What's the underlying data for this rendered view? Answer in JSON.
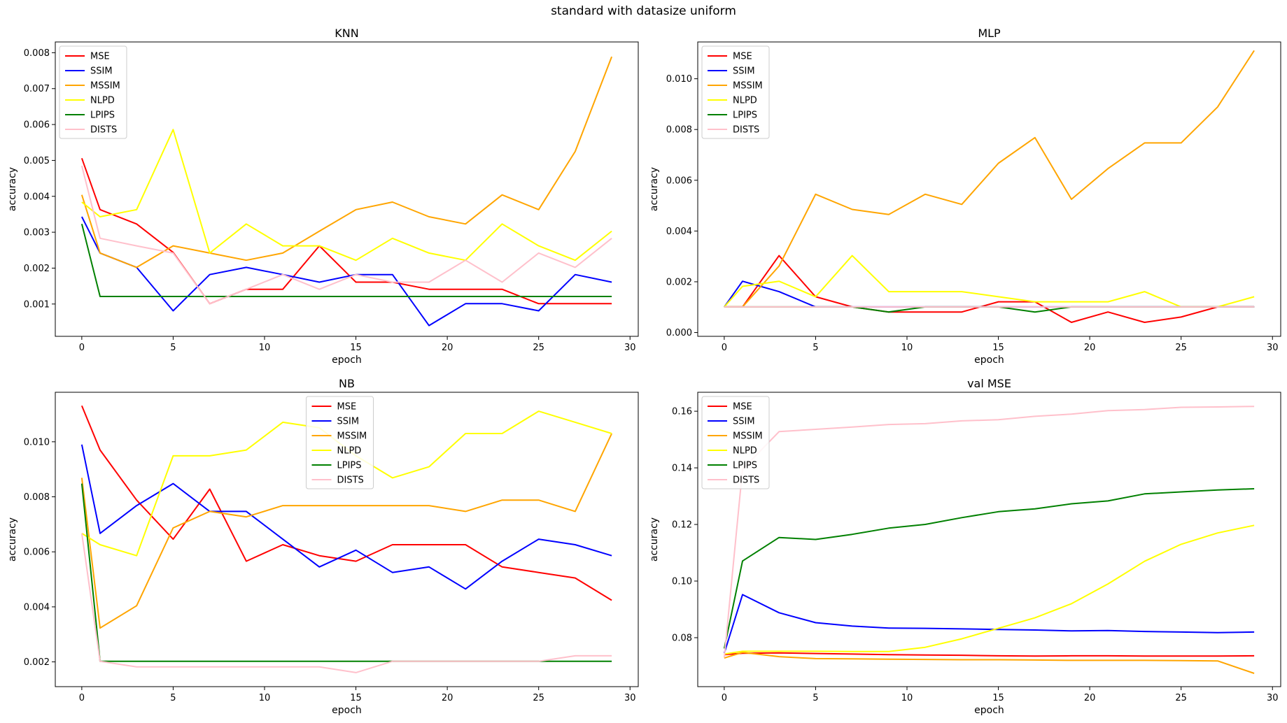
{
  "figure_title": "standard with datasize uniform",
  "colors": {
    "MSE": "#ff0000",
    "SSIM": "#0000ff",
    "MSSIM": "#ffa500",
    "NLPD": "#ffff00",
    "LPIPS": "#008000",
    "DISTS": "#ffc0cb"
  },
  "chart_data": [
    {
      "type": "line",
      "title": "KNN",
      "xlabel": "epoch",
      "ylabel": "accuracy",
      "xlim": [
        -1.45,
        30.45
      ],
      "ylim": [
        0.0001,
        0.0083
      ],
      "xticks": [
        0,
        5,
        10,
        15,
        20,
        25,
        30
      ],
      "yticks": [
        0.001,
        0.002,
        0.003,
        0.004,
        0.005,
        0.006,
        0.007,
        0.008
      ],
      "ytick_labels": [
        "0.001",
        "0.002",
        "0.003",
        "0.004",
        "0.005",
        "0.006",
        "0.007",
        "0.008"
      ],
      "legend": "upper left",
      "x": [
        0,
        1,
        3,
        5,
        7,
        9,
        11,
        13,
        15,
        17,
        19,
        21,
        23,
        25,
        27,
        29
      ],
      "series": [
        {
          "name": "MSE",
          "values": [
            0.00506,
            0.00363,
            0.00323,
            0.00244,
            0.00101,
            0.00141,
            0.00141,
            0.00262,
            0.00161,
            0.00161,
            0.00141,
            0.00141,
            0.00141,
            0.00101,
            0.00101,
            0.00101
          ]
        },
        {
          "name": "SSIM",
          "values": [
            0.00343,
            0.00242,
            0.00202,
            0.00081,
            0.00182,
            0.00202,
            0.00182,
            0.00161,
            0.00182,
            0.00182,
            0.0004,
            0.00101,
            0.00101,
            0.00081,
            0.00182,
            0.00161
          ]
        },
        {
          "name": "MSSIM",
          "values": [
            0.00404,
            0.00242,
            0.00202,
            0.00262,
            0.00242,
            0.00222,
            0.00242,
            0.00303,
            0.00363,
            0.00384,
            0.00343,
            0.00323,
            0.00404,
            0.00363,
            0.00525,
            0.00789
          ]
        },
        {
          "name": "NLPD",
          "values": [
            0.00384,
            0.00343,
            0.00363,
            0.00586,
            0.00242,
            0.00323,
            0.00262,
            0.00262,
            0.00222,
            0.00283,
            0.00242,
            0.00222,
            0.00323,
            0.00262,
            0.00222,
            0.00303
          ]
        },
        {
          "name": "LPIPS",
          "values": [
            0.00323,
            0.00121,
            0.00121,
            0.00121,
            0.00121,
            0.00121,
            0.00121,
            0.00121,
            0.00121,
            0.00121,
            0.00121,
            0.00121,
            0.00121,
            0.00121,
            0.00121,
            0.00121
          ]
        },
        {
          "name": "DISTS",
          "values": [
            0.00485,
            0.00283,
            0.00262,
            0.00242,
            0.00101,
            0.00141,
            0.00182,
            0.00141,
            0.00182,
            0.00161,
            0.00161,
            0.00222,
            0.00161,
            0.00242,
            0.00202,
            0.00283
          ]
        }
      ]
    },
    {
      "type": "line",
      "title": "MLP",
      "xlabel": "epoch",
      "ylabel": "accuracy",
      "xlim": [
        -1.45,
        30.45
      ],
      "ylim": [
        -0.00015,
        0.01145
      ],
      "xticks": [
        0,
        5,
        10,
        15,
        20,
        25,
        30
      ],
      "yticks": [
        0.0,
        0.002,
        0.004,
        0.006,
        0.008,
        0.01
      ],
      "ytick_labels": [
        "0.000",
        "0.002",
        "0.004",
        "0.006",
        "0.008",
        "0.010"
      ],
      "legend": "upper left",
      "x": [
        0,
        1,
        3,
        5,
        7,
        9,
        11,
        13,
        15,
        17,
        19,
        21,
        23,
        25,
        27,
        29
      ],
      "series": [
        {
          "name": "MSE",
          "values": [
            0.00101,
            0.00101,
            0.00303,
            0.00141,
            0.00101,
            0.00081,
            0.00081,
            0.00081,
            0.00121,
            0.00121,
            0.0004,
            0.00081,
            0.0004,
            0.00061,
            0.00101,
            0.00101
          ]
        },
        {
          "name": "SSIM",
          "values": [
            0.00101,
            0.00202,
            0.00161,
            0.00101,
            0.00101,
            0.00101,
            0.00101,
            0.00101,
            0.00101,
            0.00101,
            0.00101,
            0.00101,
            0.00101,
            0.00101,
            0.00101,
            0.00101
          ]
        },
        {
          "name": "MSSIM",
          "values": [
            0.00101,
            0.00101,
            0.00262,
            0.00545,
            0.00485,
            0.00465,
            0.00545,
            0.00505,
            0.00667,
            0.00768,
            0.00525,
            0.00646,
            0.00747,
            0.00747,
            0.00889,
            0.01111
          ]
        },
        {
          "name": "NLPD",
          "values": [
            0.00101,
            0.00182,
            0.00202,
            0.00141,
            0.00303,
            0.00161,
            0.00161,
            0.00161,
            0.00141,
            0.00121,
            0.00121,
            0.00121,
            0.00161,
            0.00101,
            0.00101,
            0.00141
          ]
        },
        {
          "name": "LPIPS",
          "values": [
            0.00101,
            0.00101,
            0.00101,
            0.00101,
            0.00101,
            0.00081,
            0.00101,
            0.00101,
            0.00101,
            0.00081,
            0.00101,
            0.00101,
            0.00101,
            0.00101,
            0.00101,
            0.00101
          ]
        },
        {
          "name": "DISTS",
          "values": [
            0.00101,
            0.00101,
            0.00101,
            0.00101,
            0.00101,
            0.00101,
            0.00101,
            0.00101,
            0.00101,
            0.00101,
            0.00101,
            0.00101,
            0.00101,
            0.00101,
            0.00101,
            0.00101
          ]
        }
      ]
    },
    {
      "type": "line",
      "title": "NB",
      "xlabel": "epoch",
      "ylabel": "accuracy",
      "xlim": [
        -1.45,
        30.45
      ],
      "ylim": [
        0.0011,
        0.0118
      ],
      "xticks": [
        0,
        5,
        10,
        15,
        20,
        25,
        30
      ],
      "yticks": [
        0.002,
        0.004,
        0.006,
        0.008,
        0.01
      ],
      "ytick_labels": [
        "0.002",
        "0.004",
        "0.006",
        "0.008",
        "0.010"
      ],
      "legend": "upper center",
      "x": [
        0,
        1,
        3,
        5,
        7,
        9,
        11,
        13,
        15,
        17,
        19,
        21,
        23,
        25,
        27,
        29
      ],
      "series": [
        {
          "name": "MSE",
          "values": [
            0.01131,
            0.0097,
            0.00788,
            0.00646,
            0.00828,
            0.00566,
            0.00626,
            0.00586,
            0.00566,
            0.00626,
            0.00626,
            0.00626,
            0.00545,
            0.00525,
            0.00505,
            0.00424
          ]
        },
        {
          "name": "SSIM",
          "values": [
            0.0099,
            0.00667,
            0.00768,
            0.00848,
            0.00747,
            0.00747,
            0.00646,
            0.00545,
            0.00606,
            0.00525,
            0.00545,
            0.00465,
            0.00566,
            0.00646,
            0.00626,
            0.00586
          ]
        },
        {
          "name": "MSSIM",
          "values": [
            0.00869,
            0.00323,
            0.00404,
            0.00687,
            0.00747,
            0.00727,
            0.00768,
            0.00768,
            0.00768,
            0.00768,
            0.00768,
            0.00747,
            0.00788,
            0.00788,
            0.00747,
            0.0103
          ]
        },
        {
          "name": "NLPD",
          "values": [
            0.00667,
            0.00626,
            0.00586,
            0.00949,
            0.00949,
            0.0097,
            0.01071,
            0.01051,
            0.00949,
            0.00869,
            0.00909,
            0.0103,
            0.0103,
            0.01111,
            0.01071,
            0.0103
          ]
        },
        {
          "name": "LPIPS",
          "values": [
            0.00848,
            0.00202,
            0.00202,
            0.00202,
            0.00202,
            0.00202,
            0.00202,
            0.00202,
            0.00202,
            0.00202,
            0.00202,
            0.00202,
            0.00202,
            0.00202,
            0.00202,
            0.00202
          ]
        },
        {
          "name": "DISTS",
          "values": [
            0.00667,
            0.00202,
            0.00182,
            0.00182,
            0.00182,
            0.00182,
            0.00182,
            0.00182,
            0.00161,
            0.00202,
            0.00202,
            0.00202,
            0.00202,
            0.00202,
            0.00222,
            0.00222
          ]
        }
      ]
    },
    {
      "type": "line",
      "title": "val MSE",
      "xlabel": "epoch",
      "ylabel": "accuracy",
      "xlim": [
        -1.45,
        30.45
      ],
      "ylim": [
        0.0627,
        0.1667
      ],
      "xticks": [
        0,
        5,
        10,
        15,
        20,
        25,
        30
      ],
      "yticks": [
        0.08,
        0.1,
        0.12,
        0.14,
        0.16
      ],
      "ytick_labels": [
        "0.08",
        "0.10",
        "0.12",
        "0.14",
        "0.16"
      ],
      "legend": "upper left",
      "x": [
        0,
        1,
        3,
        5,
        7,
        9,
        11,
        13,
        15,
        17,
        19,
        21,
        23,
        25,
        27,
        29
      ],
      "series": [
        {
          "name": "MSE",
          "values": [
            0.074,
            0.0745,
            0.0746,
            0.0744,
            0.0742,
            0.074,
            0.0739,
            0.0738,
            0.0736,
            0.0735,
            0.0736,
            0.0736,
            0.0735,
            0.0735,
            0.0735,
            0.0736
          ]
        },
        {
          "name": "SSIM",
          "values": [
            0.0745,
            0.0952,
            0.0888,
            0.0853,
            0.0841,
            0.0834,
            0.0833,
            0.0831,
            0.0829,
            0.0827,
            0.0824,
            0.0825,
            0.0822,
            0.082,
            0.0818,
            0.082
          ]
        },
        {
          "name": "MSSIM",
          "values": [
            0.0728,
            0.0748,
            0.0733,
            0.0726,
            0.0725,
            0.0724,
            0.0723,
            0.0722,
            0.0722,
            0.0721,
            0.072,
            0.072,
            0.072,
            0.0719,
            0.0718,
            0.0674
          ]
        },
        {
          "name": "NLPD",
          "values": [
            0.0742,
            0.0752,
            0.0752,
            0.0752,
            0.0751,
            0.0751,
            0.0766,
            0.0796,
            0.0833,
            0.087,
            0.092,
            0.099,
            0.107,
            0.113,
            0.117,
            0.1197
          ]
        },
        {
          "name": "LPIPS",
          "values": [
            0.0762,
            0.1071,
            0.1154,
            0.1147,
            0.1165,
            0.1187,
            0.12,
            0.1224,
            0.1245,
            0.1255,
            0.1273,
            0.1283,
            0.1308,
            0.1315,
            0.1322,
            0.1326
          ]
        },
        {
          "name": "DISTS",
          "values": [
            0.073,
            0.1395,
            0.1528,
            0.1536,
            0.1544,
            0.1553,
            0.1556,
            0.1566,
            0.157,
            0.1582,
            0.159,
            0.1602,
            0.1606,
            0.1614,
            0.1615,
            0.1617
          ]
        }
      ]
    }
  ]
}
